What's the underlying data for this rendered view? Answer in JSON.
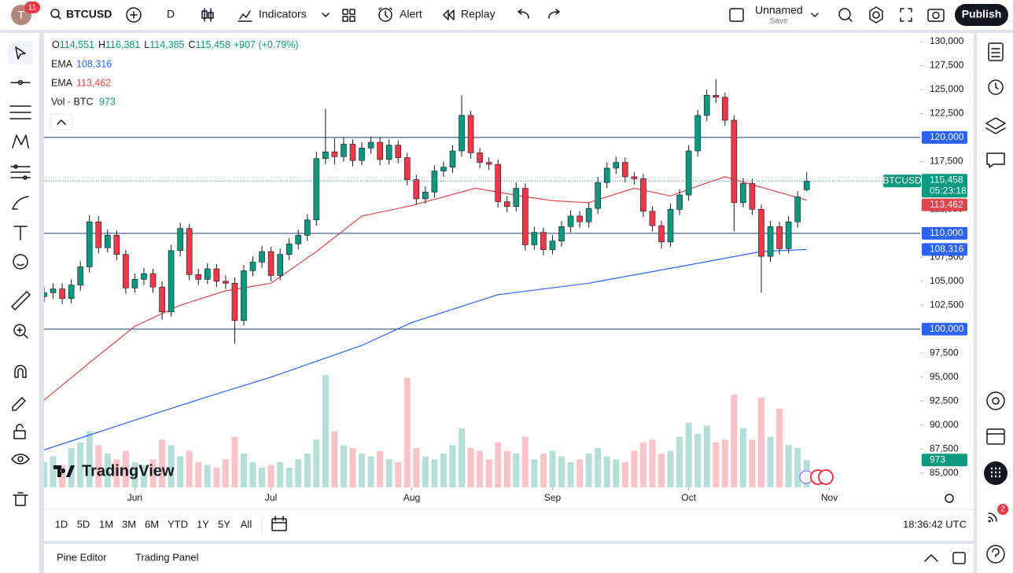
{
  "toolbar": {
    "avatar": "T",
    "notifications": 11,
    "symbol": "BTCUSD",
    "interval": "D",
    "indicators": "Indicators",
    "alert": "Alert",
    "replay": "Replay",
    "layout_name": "Unnamed",
    "save": "Save",
    "publish": "Publish"
  },
  "ranges": [
    "1D",
    "5D",
    "1M",
    "3M",
    "6M",
    "YTD",
    "1Y",
    "5Y",
    "All"
  ],
  "clock": "18:36:42 UTC",
  "panels": [
    "Pine Editor",
    "Trading Panel"
  ],
  "sidebar_badge": 2,
  "logo": "TradingView",
  "chart_data": {
    "type": "candlestick",
    "symbol": "BTCUSD",
    "legend": [
      {
        "prefix": "O",
        "value": 114551,
        "label": "114,551"
      },
      {
        "prefix": "H",
        "value": 116381,
        "label": "116,381"
      },
      {
        "prefix": "L",
        "value": 114385,
        "label": "114,385"
      },
      {
        "prefix": "C",
        "value": 115458,
        "label": "115,458"
      }
    ],
    "change": "+907 (+0.79%)",
    "up_color": "#089981",
    "down_color": "#f23645",
    "x": [
      0,
      2,
      4,
      6,
      8,
      10,
      12,
      14,
      16,
      18,
      20,
      22,
      24,
      26,
      28,
      30,
      32,
      34,
      36,
      38,
      40,
      42,
      44,
      46,
      48,
      50,
      52,
      54,
      56,
      58,
      60,
      62,
      64,
      66,
      68,
      70,
      72,
      74,
      76,
      78,
      80,
      82,
      84,
      86,
      88,
      90,
      92,
      94,
      96,
      98,
      100,
      102,
      104,
      106,
      108,
      110,
      112,
      114,
      116,
      118,
      120,
      122,
      124,
      126,
      128,
      130,
      132,
      134,
      136,
      138,
      140,
      142,
      144,
      146,
      148,
      150,
      152,
      154,
      156,
      158,
      160,
      162,
      164,
      166,
      168
    ],
    "open": [
      103400,
      103800,
      104200,
      103200,
      104600,
      106500,
      111200,
      108500,
      109800,
      107800,
      104300,
      105200,
      105800,
      104400,
      101800,
      108200,
      110500,
      105700,
      105200,
      106300,
      105000,
      104800,
      100900,
      106100,
      107000,
      108100,
      105600,
      107800,
      108900,
      109800,
      111400,
      117800,
      118500,
      118000,
      119300,
      117600,
      118900,
      119500,
      117700,
      119200,
      117900,
      115600,
      113600,
      114300,
      116500,
      116900,
      118600,
      122300,
      118400,
      117400,
      117200,
      113300,
      112800,
      114700,
      108800,
      110100,
      108300,
      109200,
      110700,
      111800,
      111200,
      112600,
      115300,
      116800,
      117400,
      115900,
      115700,
      112300,
      110800,
      109100,
      112500,
      114000,
      118600,
      122300,
      124400,
      124200,
      121800,
      113200,
      115200,
      112500,
      107600,
      110700,
      108400,
      111200,
      114551
    ],
    "high": [
      104400,
      104800,
      104800,
      105200,
      107100,
      111900,
      111800,
      110400,
      110300,
      108300,
      105800,
      106400,
      106300,
      105000,
      108800,
      111100,
      111000,
      106300,
      106900,
      106800,
      105600,
      105400,
      106700,
      107600,
      108700,
      108600,
      108400,
      109500,
      110400,
      112000,
      118500,
      123000,
      119900,
      120000,
      119800,
      119500,
      120100,
      120000,
      119800,
      119700,
      118400,
      116100,
      114900,
      117100,
      117500,
      119200,
      124400,
      122800,
      118900,
      117900,
      117700,
      113900,
      115300,
      115200,
      110700,
      110600,
      109800,
      111300,
      112400,
      112300,
      113200,
      115900,
      117400,
      118000,
      117900,
      116400,
      116200,
      112800,
      111300,
      113100,
      114600,
      119200,
      122900,
      125000,
      126100,
      124700,
      122300,
      115800,
      115700,
      113000,
      111300,
      111200,
      111800,
      114400,
      116381
    ],
    "low": [
      102800,
      103200,
      102600,
      102700,
      104000,
      105900,
      107900,
      108000,
      107200,
      103700,
      103800,
      104600,
      103800,
      101000,
      101300,
      107600,
      105100,
      104600,
      104700,
      104400,
      104200,
      98500,
      100400,
      105500,
      106400,
      105000,
      105100,
      107200,
      108300,
      109200,
      110800,
      117200,
      117200,
      117500,
      117000,
      117100,
      118300,
      117100,
      117200,
      117300,
      115000,
      113000,
      113100,
      113700,
      115900,
      116300,
      118000,
      117800,
      116800,
      116600,
      112700,
      112200,
      112300,
      108200,
      108300,
      107700,
      107800,
      108600,
      110100,
      110600,
      110600,
      112000,
      114700,
      116200,
      115300,
      115100,
      111700,
      110200,
      108400,
      108600,
      111900,
      113400,
      118000,
      121700,
      123600,
      121200,
      110200,
      112700,
      111900,
      103800,
      107000,
      107800,
      107900,
      110600,
      114385
    ],
    "close": [
      103800,
      104200,
      103200,
      104600,
      106500,
      111200,
      108500,
      109800,
      107800,
      104300,
      105200,
      105800,
      104400,
      101800,
      108200,
      110500,
      105700,
      105200,
      106300,
      105000,
      104800,
      100900,
      106100,
      107000,
      108100,
      105600,
      107800,
      108900,
      109800,
      111400,
      117800,
      118500,
      118000,
      119300,
      117600,
      118900,
      119500,
      117700,
      119200,
      117900,
      115600,
      113600,
      114300,
      116500,
      116900,
      118600,
      122300,
      118400,
      117400,
      117200,
      113300,
      112800,
      114700,
      108800,
      110100,
      108300,
      109200,
      110700,
      111800,
      111200,
      112600,
      115300,
      116800,
      117400,
      115900,
      115700,
      112300,
      110800,
      109100,
      112500,
      114000,
      118600,
      122300,
      124400,
      124200,
      121800,
      113200,
      115200,
      112500,
      107600,
      110700,
      108400,
      111200,
      113800,
      115458
    ],
    "volume": [
      900,
      1100,
      800,
      1400,
      1600,
      2000,
      1500,
      1200,
      1000,
      1300,
      900,
      800,
      1000,
      1700,
      1500,
      1100,
      1300,
      900,
      800,
      700,
      1000,
      1800,
      1200,
      900,
      700,
      800,
      900,
      700,
      1000,
      1200,
      1700,
      4000,
      2000,
      1500,
      1400,
      1200,
      1100,
      1300,
      1000,
      900,
      3900,
      1400,
      1100,
      1000,
      1200,
      1500,
      2100,
      1400,
      1300,
      1000,
      1600,
      1300,
      1200,
      1800,
      1000,
      1200,
      1300,
      1100,
      900,
      1000,
      1200,
      1400,
      1100,
      1000,
      900,
      1300,
      1600,
      1700,
      1200,
      1300,
      1800,
      2300,
      1900,
      2200,
      1600,
      1700,
      3300,
      2100,
      1700,
      3200,
      1800,
      2800,
      1500,
      1400,
      973
    ],
    "volume_name": "Vol · BTC",
    "volume_last": 973,
    "volume_color": "#089981",
    "vlim": [
      0,
      4200
    ],
    "series": [
      {
        "name": "EMA",
        "color": "#2962ff",
        "x": [
          0,
          20,
          35,
          50,
          70,
          81,
          100,
          120,
          142,
          158,
          168
        ],
        "values": [
          87400,
          90500,
          92800,
          95000,
          98300,
          100700,
          103600,
          104800,
          106700,
          108100,
          108316
        ],
        "last": {
          "value": 108316,
          "label": "108,316"
        }
      },
      {
        "name": "EMA",
        "color": "#e0474c",
        "x": [
          0,
          10,
          20,
          30,
          40,
          50,
          60,
          70,
          81,
          95,
          105,
          112,
          120,
          130,
          138,
          145,
          150,
          158,
          168
        ],
        "values": [
          92600,
          96500,
          100300,
          102500,
          104000,
          104800,
          108100,
          111800,
          112900,
          114700,
          113900,
          113400,
          113200,
          114700,
          113900,
          115100,
          115900,
          114800,
          113462
        ],
        "last": {
          "value": 113462,
          "label": "113,462"
        }
      }
    ],
    "levels": [
      {
        "value": 120000,
        "label": "120,000"
      },
      {
        "value": 110000,
        "label": "110,000"
      },
      {
        "value": 100000,
        "label": "100,000"
      }
    ],
    "level_color": "#2962ff",
    "last_price": {
      "value": 115458,
      "label": "115,458"
    },
    "countdown": "05:23:18",
    "grid": false,
    "xlim": [
      0,
      193
    ],
    "xticks": [
      {
        "value": 20,
        "label": "Jun"
      },
      {
        "value": 50,
        "label": "Jul"
      },
      {
        "value": 81,
        "label": "Aug"
      },
      {
        "value": 112,
        "label": "Sep"
      },
      {
        "value": 142,
        "label": "Oct"
      },
      {
        "value": 173,
        "label": "Nov"
      }
    ],
    "ylim": [
      83500,
      130900
    ],
    "yticks": [
      {
        "value": 130000,
        "label": "130,000"
      },
      {
        "value": 127500,
        "label": "127,500"
      },
      {
        "value": 125000,
        "label": "125,000"
      },
      {
        "value": 122500,
        "label": "122,500"
      },
      {
        "value": 117500,
        "label": "117,500"
      },
      {
        "value": 115000,
        "label": "115,000"
      },
      {
        "value": 112500,
        "label": "112,500"
      },
      {
        "value": 107500,
        "label": "107,500"
      },
      {
        "value": 105000,
        "label": "105,000"
      },
      {
        "value": 102500,
        "label": "102,500"
      },
      {
        "value": 97500,
        "label": "97,500"
      },
      {
        "value": 95000,
        "label": "95,000"
      },
      {
        "value": 92500,
        "label": "92,500"
      },
      {
        "value": 90000,
        "label": "90,000"
      },
      {
        "value": 87500,
        "label": "87,500"
      },
      {
        "value": 85000,
        "label": "85,000"
      }
    ]
  }
}
